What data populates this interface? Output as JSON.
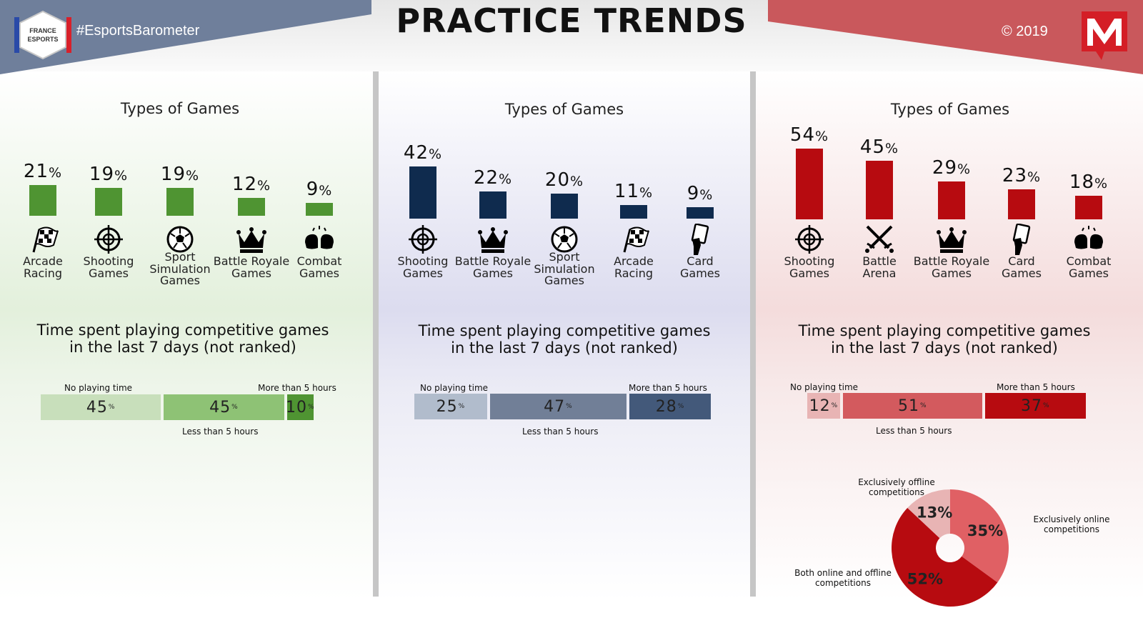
{
  "header": {
    "title": "PRACTICE TRENDS",
    "hashtag": "#EsportsBarometer",
    "copyright": "© 2019",
    "left_logo_text": [
      "FRANCE",
      "ESPORTS"
    ],
    "right_logo_letter": "M"
  },
  "colors": {
    "green": "#4f9432",
    "navy": "#0f2b4e",
    "red": "#b70b10",
    "banner_blue": "#6f7f9b",
    "banner_red": "#c9585c"
  },
  "panels": [
    {
      "section_title": "Types of Games",
      "categories": [
        {
          "value": 21,
          "label_lines": [
            "Arcade",
            "Racing"
          ],
          "icon": "racing-flag-icon"
        },
        {
          "value": 19,
          "label_lines": [
            "Shooting",
            "Games"
          ],
          "icon": "crosshair-icon"
        },
        {
          "value": 19,
          "label_lines": [
            "Sport",
            "Simulation",
            "Games"
          ],
          "icon": "soccer-ball-icon"
        },
        {
          "value": 12,
          "label_lines": [
            "Battle Royale",
            "Games"
          ],
          "icon": "crown-icon"
        },
        {
          "value": 9,
          "label_lines": [
            "Combat",
            "Games"
          ],
          "icon": "boxing-gloves-icon"
        }
      ],
      "time_title_lines": [
        "Time spent playing competitive games",
        "in the last 7 days (not ranked)"
      ],
      "time_segments": [
        45,
        45,
        10
      ],
      "time_labels": {
        "none": "No playing time",
        "less": "Less than 5 hours",
        "more": "More than 5 hours"
      }
    },
    {
      "section_title": "Types of Games",
      "categories": [
        {
          "value": 42,
          "label_lines": [
            "Shooting",
            "Games"
          ],
          "icon": "crosshair-icon"
        },
        {
          "value": 22,
          "label_lines": [
            "Battle Royale",
            "Games"
          ],
          "icon": "crown-icon"
        },
        {
          "value": 20,
          "label_lines": [
            "Sport",
            "Simulation",
            "Games"
          ],
          "icon": "soccer-ball-icon"
        },
        {
          "value": 11,
          "label_lines": [
            "Arcade",
            "Racing"
          ],
          "icon": "racing-flag-icon"
        },
        {
          "value": 9,
          "label_lines": [
            "Card",
            "Games"
          ],
          "icon": "card-hand-icon"
        }
      ],
      "time_title_lines": [
        "Time spent playing competitive games",
        "in the last 7 days (not ranked)"
      ],
      "time_segments": [
        25,
        47,
        28
      ],
      "time_labels": {
        "none": "No playing time",
        "less": "Less than 5 hours",
        "more": "More than 5 hours"
      }
    },
    {
      "section_title": "Types of Games",
      "categories": [
        {
          "value": 54,
          "label_lines": [
            "Shooting",
            "Games"
          ],
          "icon": "crosshair-icon"
        },
        {
          "value": 45,
          "label_lines": [
            "Battle",
            "Arena"
          ],
          "icon": "crossed-swords-icon"
        },
        {
          "value": 29,
          "label_lines": [
            "Battle Royale",
            "Games"
          ],
          "icon": "crown-icon"
        },
        {
          "value": 23,
          "label_lines": [
            "Card",
            "Games"
          ],
          "icon": "card-hand-icon"
        },
        {
          "value": 18,
          "label_lines": [
            "Combat",
            "Games"
          ],
          "icon": "boxing-gloves-icon"
        }
      ],
      "time_title_lines": [
        "Time spent playing competitive games",
        "in the last 7 days (not ranked)"
      ],
      "time_segments": [
        12,
        51,
        37
      ],
      "time_labels": {
        "none": "No playing time",
        "less": "Less than 5 hours",
        "more": "More than 5 hours"
      }
    }
  ],
  "chart_data": [
    {
      "type": "bar",
      "title": "Types of Games",
      "categories": [
        "Arcade Racing",
        "Shooting Games",
        "Sport Simulation Games",
        "Battle Royale Games",
        "Combat Games"
      ],
      "values": [
        21,
        19,
        19,
        12,
        9
      ],
      "unit": "%"
    },
    {
      "type": "bar",
      "title": "Types of Games",
      "categories": [
        "Shooting Games",
        "Battle Royale Games",
        "Sport Simulation Games",
        "Arcade Racing",
        "Card Games"
      ],
      "values": [
        42,
        22,
        20,
        11,
        9
      ],
      "unit": "%"
    },
    {
      "type": "bar",
      "title": "Types of Games",
      "categories": [
        "Shooting Games",
        "Battle Arena",
        "Battle Royale Games",
        "Card Games",
        "Combat Games"
      ],
      "values": [
        54,
        45,
        29,
        23,
        18
      ],
      "unit": "%"
    },
    {
      "type": "bar",
      "stacked": true,
      "orientation": "horizontal",
      "title": "Time spent playing competitive games in the last 7 days (not ranked)",
      "categories": [
        "No playing time",
        "Less than 5 hours",
        "More than 5 hours"
      ],
      "values": [
        45,
        45,
        10
      ],
      "unit": "%"
    },
    {
      "type": "bar",
      "stacked": true,
      "orientation": "horizontal",
      "title": "Time spent playing competitive games in the last 7 days (not ranked)",
      "categories": [
        "No playing time",
        "Less than 5 hours",
        "More than 5 hours"
      ],
      "values": [
        25,
        47,
        28
      ],
      "unit": "%"
    },
    {
      "type": "bar",
      "stacked": true,
      "orientation": "horizontal",
      "title": "Time spent playing competitive games in the last 7 days (not ranked)",
      "categories": [
        "No playing time",
        "Less than 5 hours",
        "More than 5 hours"
      ],
      "values": [
        12,
        51,
        37
      ],
      "unit": "%"
    },
    {
      "type": "pie",
      "donut": true,
      "categories": [
        "Exclusively online competitions",
        "Both online and offline competitions",
        "Exclusively offline competitions"
      ],
      "values": [
        35,
        52,
        13
      ],
      "unit": "%",
      "colors": [
        "#e06064",
        "#b70b10",
        "#e8b4b4"
      ]
    }
  ]
}
